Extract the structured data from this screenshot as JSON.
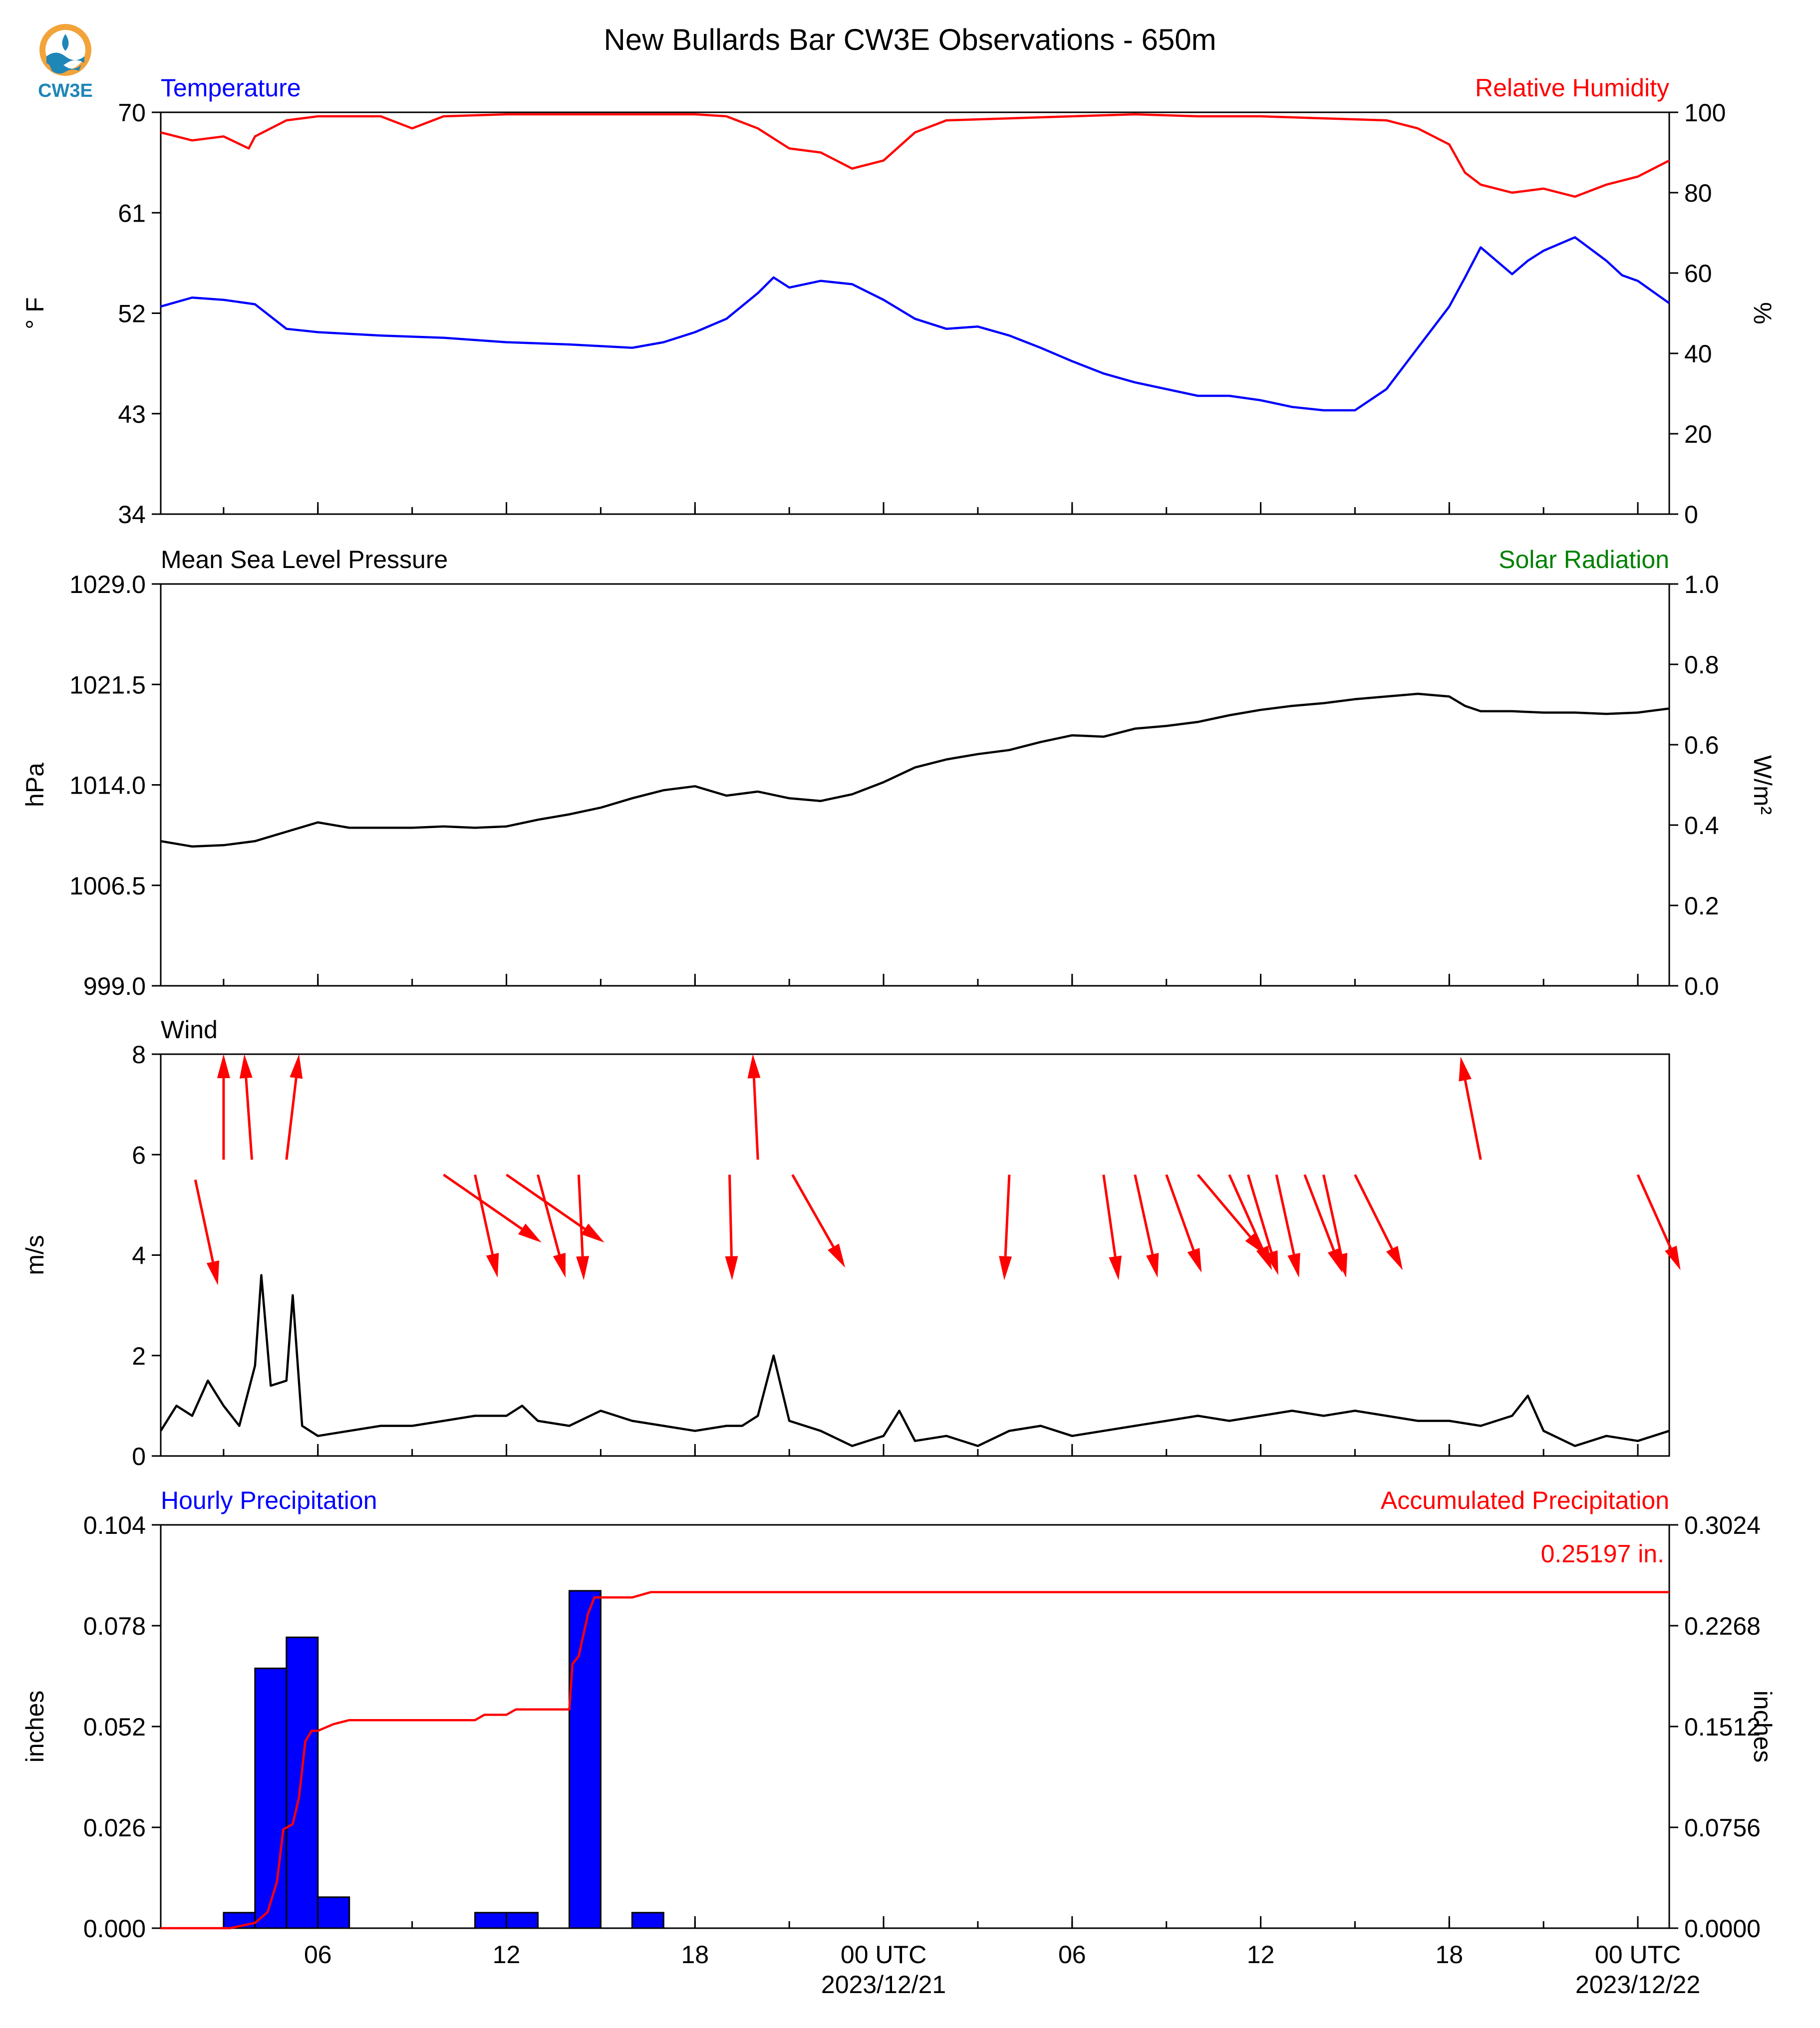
{
  "figure": {
    "title": "New Bullards Bar CW3E Observations - 650m",
    "logo_text": "CW3E",
    "x_axis": {
      "tick_labels": [
        "06",
        "12",
        "18",
        "00 UTC",
        "06",
        "12",
        "18",
        "00 UTC"
      ],
      "tick_hours": [
        6,
        12,
        18,
        24,
        30,
        36,
        42,
        48
      ],
      "date_labels": [
        {
          "hour": 24,
          "text": "2023/12/21"
        },
        {
          "hour": 48,
          "text": "2023/12/22"
        }
      ],
      "range_hours": [
        1,
        49
      ]
    }
  },
  "colors": {
    "temperature": "#0000ff",
    "humidity": "#ff0000",
    "solar": "#008000",
    "pressure": "#000000",
    "wind_arrow": "#ff0000",
    "wind_speed": "#000000",
    "hourly_precip": "#0000ff",
    "accum_precip": "#ff0000"
  },
  "chart_data": [
    {
      "type": "line",
      "panel": "temp_rh",
      "left_label": "Temperature",
      "right_label": "Relative Humidity",
      "ylabel_left": "° F",
      "ylabel_right": "%",
      "ylim_left": [
        34,
        70
      ],
      "yticks_left": [
        "70",
        "61",
        "52",
        "43",
        "34"
      ],
      "ylim_right": [
        0,
        100
      ],
      "yticks_right": [
        "100",
        "80",
        "60",
        "40",
        "20",
        "0"
      ],
      "series": [
        {
          "name": "Temperature",
          "axis": "left",
          "x": [
            1,
            2,
            3,
            4,
            5,
            6,
            8,
            10,
            12,
            14,
            16,
            17,
            18,
            19,
            20,
            20.5,
            21,
            22,
            23,
            24,
            25,
            26,
            27,
            28,
            29,
            30,
            31,
            32,
            33,
            34,
            35,
            36,
            37,
            38,
            39,
            40,
            41,
            42,
            42.5,
            43,
            44,
            44.5,
            45,
            46,
            47,
            47.5,
            48,
            49
          ],
          "y": [
            52.6,
            53.4,
            53.2,
            52.8,
            50.6,
            50.3,
            50.0,
            49.8,
            49.4,
            49.2,
            48.9,
            49.4,
            50.3,
            51.5,
            53.8,
            55.2,
            54.3,
            54.9,
            54.6,
            53.2,
            51.5,
            50.6,
            50.8,
            50.0,
            48.9,
            47.7,
            46.6,
            45.8,
            45.2,
            44.6,
            44.6,
            44.2,
            43.6,
            43.3,
            43.3,
            45.2,
            48.9,
            52.6,
            55.2,
            57.9,
            55.5,
            56.7,
            57.6,
            58.8,
            56.7,
            55.4,
            54.9,
            52.9
          ]
        },
        {
          "name": "Relative Humidity",
          "axis": "right",
          "x": [
            1,
            2,
            3,
            3.8,
            4,
            5,
            6,
            7,
            8,
            9,
            10,
            12,
            14,
            16,
            18,
            19,
            20,
            21,
            22,
            23,
            24,
            25,
            26,
            28,
            30,
            32,
            34,
            36,
            38,
            40,
            41,
            42,
            42.5,
            43,
            44,
            45,
            46,
            47,
            48,
            49
          ],
          "y": [
            95,
            93,
            94,
            91,
            94,
            98,
            99,
            99,
            99,
            96,
            99,
            99.5,
            99.5,
            99.5,
            99.5,
            99,
            96,
            91,
            90,
            86,
            88,
            95,
            98,
            98.5,
            99,
            99.5,
            99,
            99,
            98.5,
            98,
            96,
            92,
            85,
            82,
            80,
            81,
            79,
            82,
            84,
            88
          ]
        }
      ]
    },
    {
      "type": "line",
      "panel": "pressure",
      "left_label": "Mean Sea Level Pressure",
      "right_label": "Solar Radiation",
      "ylabel_left": "hPa",
      "ylabel_right": "W/m²",
      "ylim_left": [
        999.0,
        1029.0
      ],
      "yticks_left": [
        "1029.0",
        "1021.5",
        "1014.0",
        "1006.5",
        "999.0"
      ],
      "ylim_right": [
        0.0,
        1.0
      ],
      "yticks_right": [
        "1.0",
        "0.8",
        "0.6",
        "0.4",
        "0.2",
        "0.0"
      ],
      "series": [
        {
          "name": "Mean Sea Level Pressure",
          "axis": "left",
          "x": [
            1,
            2,
            3,
            4,
            5,
            6,
            7,
            8,
            9,
            10,
            11,
            12,
            13,
            14,
            15,
            16,
            17,
            18,
            19,
            20,
            21,
            22,
            23,
            24,
            25,
            26,
            27,
            28,
            29,
            30,
            31,
            32,
            33,
            34,
            35,
            36,
            37,
            38,
            39,
            40,
            41,
            42,
            42.5,
            43,
            44,
            45,
            46,
            47,
            48,
            49
          ],
          "y": [
            1009.8,
            1009.4,
            1009.5,
            1009.8,
            1010.5,
            1011.2,
            1010.8,
            1010.8,
            1010.8,
            1010.9,
            1010.8,
            1010.9,
            1011.4,
            1011.8,
            1012.3,
            1013.0,
            1013.6,
            1013.9,
            1013.2,
            1013.5,
            1013.0,
            1012.8,
            1013.3,
            1014.2,
            1015.3,
            1015.9,
            1016.3,
            1016.6,
            1017.2,
            1017.7,
            1017.6,
            1018.2,
            1018.4,
            1018.7,
            1019.2,
            1019.6,
            1019.9,
            1020.1,
            1020.4,
            1020.6,
            1020.8,
            1020.6,
            1019.9,
            1019.5,
            1019.5,
            1019.4,
            1019.4,
            1019.3,
            1019.4,
            1019.7
          ]
        }
      ]
    },
    {
      "type": "line",
      "panel": "wind",
      "left_label": "Wind",
      "ylabel_left": "m/s",
      "ylim_left": [
        0,
        8
      ],
      "yticks_left": [
        "8",
        "6",
        "4",
        "2",
        "0"
      ],
      "series": [
        {
          "name": "Wind",
          "axis": "left",
          "x": [
            1,
            1.5,
            2,
            2.5,
            3,
            3.5,
            4,
            4.2,
            4.5,
            5,
            5.2,
            5.5,
            6,
            7,
            8,
            9,
            10,
            11,
            12,
            12.5,
            13,
            14,
            15,
            16,
            17,
            18,
            19,
            19.5,
            20,
            20.5,
            21,
            22,
            23,
            24,
            24.5,
            25,
            26,
            27,
            28,
            29,
            30,
            31,
            32,
            33,
            34,
            35,
            36,
            37,
            38,
            39,
            40,
            41,
            42,
            43,
            44,
            44.5,
            45,
            46,
            47,
            48,
            49
          ],
          "y": [
            0.5,
            1.0,
            0.8,
            1.5,
            1.0,
            0.6,
            1.8,
            3.6,
            1.4,
            1.5,
            3.2,
            0.6,
            0.4,
            0.5,
            0.6,
            0.6,
            0.7,
            0.8,
            0.8,
            1.0,
            0.7,
            0.6,
            0.9,
            0.7,
            0.6,
            0.5,
            0.6,
            0.6,
            0.8,
            2.0,
            0.7,
            0.5,
            0.2,
            0.4,
            0.9,
            0.3,
            0.4,
            0.2,
            0.5,
            0.6,
            0.4,
            0.5,
            0.6,
            0.7,
            0.8,
            0.7,
            0.8,
            0.9,
            0.8,
            0.9,
            0.8,
            0.7,
            0.7,
            0.6,
            0.8,
            1.2,
            0.5,
            0.2,
            0.4,
            0.3,
            0.5
          ]
        }
      ],
      "wind_arrows": [
        {
          "hour": 2.1,
          "tail_speed": 5.5,
          "u": 0.45,
          "v": -2.1
        },
        {
          "hour": 3.0,
          "tail_speed": 5.9,
          "u": 0.0,
          "v": 2.1
        },
        {
          "hour": 3.9,
          "tail_speed": 5.9,
          "u": -0.15,
          "v": 2.1
        },
        {
          "hour": 5.0,
          "tail_speed": 5.9,
          "u": 0.25,
          "v": 2.1
        },
        {
          "hour": 10.0,
          "tail_speed": 5.6,
          "u": 1.95,
          "v": -1.35
        },
        {
          "hour": 11.0,
          "tail_speed": 5.6,
          "u": 0.45,
          "v": -2.05
        },
        {
          "hour": 12.0,
          "tail_speed": 5.6,
          "u": 1.95,
          "v": -1.35
        },
        {
          "hour": 13.0,
          "tail_speed": 5.6,
          "u": 0.55,
          "v": -2.05
        },
        {
          "hour": 14.3,
          "tail_speed": 5.6,
          "u": 0.1,
          "v": -2.1
        },
        {
          "hour": 19.1,
          "tail_speed": 5.6,
          "u": 0.05,
          "v": -2.1
        },
        {
          "hour": 20.0,
          "tail_speed": 5.9,
          "u": -0.1,
          "v": 2.1
        },
        {
          "hour": 21.1,
          "tail_speed": 5.6,
          "u": 1.05,
          "v": -1.85
        },
        {
          "hour": 28.0,
          "tail_speed": 5.6,
          "u": -0.1,
          "v": -2.1
        },
        {
          "hour": 31.0,
          "tail_speed": 5.6,
          "u": 0.3,
          "v": -2.1
        },
        {
          "hour": 32.0,
          "tail_speed": 5.6,
          "u": 0.45,
          "v": -2.05
        },
        {
          "hour": 33.0,
          "tail_speed": 5.6,
          "u": 0.7,
          "v": -1.95
        },
        {
          "hour": 34.0,
          "tail_speed": 5.6,
          "u": 1.35,
          "v": -1.6
        },
        {
          "hour": 35.0,
          "tail_speed": 5.6,
          "u": 0.85,
          "v": -1.9
        },
        {
          "hour": 35.6,
          "tail_speed": 5.6,
          "u": 0.6,
          "v": -2.0
        },
        {
          "hour": 36.5,
          "tail_speed": 5.6,
          "u": 0.45,
          "v": -2.05
        },
        {
          "hour": 37.4,
          "tail_speed": 5.6,
          "u": 0.75,
          "v": -1.95
        },
        {
          "hour": 38.0,
          "tail_speed": 5.6,
          "u": 0.45,
          "v": -2.05
        },
        {
          "hour": 39.0,
          "tail_speed": 5.6,
          "u": 0.95,
          "v": -1.9
        },
        {
          "hour": 43.0,
          "tail_speed": 5.9,
          "u": -0.4,
          "v": 2.05
        },
        {
          "hour": 48.0,
          "tail_speed": 5.6,
          "u": 0.85,
          "v": -1.9
        }
      ]
    },
    {
      "type": "bar",
      "panel": "precip",
      "left_label": "Hourly Precipitation",
      "right_label": "Accumulated Precipitation",
      "ylabel_left": "inches",
      "ylabel_right": "inches",
      "ylim_left": [
        0.0,
        0.104
      ],
      "yticks_left": [
        "0.104",
        "0.078",
        "0.052",
        "0.026",
        "0.000"
      ],
      "ylim_right": [
        0.0,
        0.3024
      ],
      "yticks_right": [
        "0.3024",
        "0.2268",
        "0.1512",
        "0.0756",
        "0.0000"
      ],
      "total_label": "0.25197 in.",
      "hourly_bars": [
        {
          "hour": 3,
          "value": 0.004
        },
        {
          "hour": 4,
          "value": 0.067
        },
        {
          "hour": 5,
          "value": 0.075
        },
        {
          "hour": 6,
          "value": 0.008
        },
        {
          "hour": 11,
          "value": 0.004
        },
        {
          "hour": 12,
          "value": 0.004
        },
        {
          "hour": 14,
          "value": 0.087
        },
        {
          "hour": 16,
          "value": 0.004
        }
      ],
      "series": [
        {
          "name": "Accumulated Precipitation",
          "axis": "right",
          "x": [
            1,
            3.2,
            4.0,
            4.4,
            4.7,
            4.9,
            5.2,
            5.4,
            5.6,
            5.8,
            6.0,
            6.5,
            7.0,
            11.0,
            11.3,
            12.0,
            12.3,
            14.0,
            14.1,
            14.3,
            14.6,
            14.8,
            15.0,
            16.0,
            16.6,
            17.0,
            49
          ],
          "y": [
            0.0,
            0.0,
            0.004,
            0.012,
            0.035,
            0.074,
            0.078,
            0.098,
            0.14,
            0.148,
            0.148,
            0.153,
            0.156,
            0.156,
            0.16,
            0.16,
            0.164,
            0.164,
            0.198,
            0.204,
            0.236,
            0.248,
            0.248,
            0.248,
            0.252,
            0.252,
            0.252
          ]
        }
      ]
    }
  ]
}
